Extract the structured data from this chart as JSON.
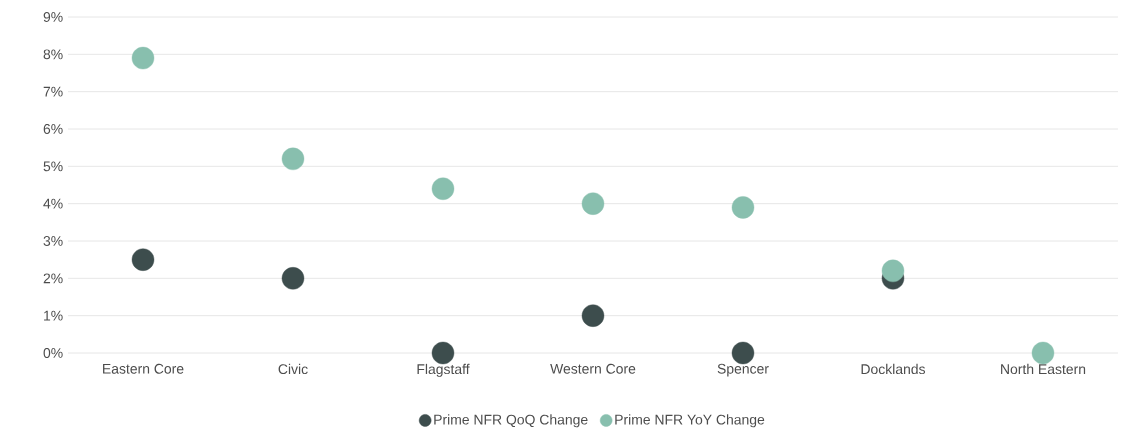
{
  "chart_data": {
    "type": "scatter",
    "categories": [
      "Eastern Core",
      "Civic",
      "Flagstaff",
      "Western Core",
      "Spencer",
      "Docklands",
      "North Eastern"
    ],
    "series": [
      {
        "name": "Prime NFR QoQ Change",
        "color": "#3d4d4d",
        "values": [
          2.5,
          2.0,
          0,
          1.0,
          0,
          2.0,
          null
        ]
      },
      {
        "name": "Prime NFR YoY Change",
        "color": "#88bfae",
        "values": [
          7.9,
          5.2,
          4.4,
          4.0,
          3.9,
          2.2,
          0
        ]
      }
    ],
    "ylim": [
      0,
      9
    ],
    "yticks": [
      {
        "value": 0,
        "label": "0%"
      },
      {
        "value": 1,
        "label": "1%"
      },
      {
        "value": 2,
        "label": "2%"
      },
      {
        "value": 3,
        "label": "3%"
      },
      {
        "value": 4,
        "label": "4%"
      },
      {
        "value": 5,
        "label": "5%"
      },
      {
        "value": 6,
        "label": "6%"
      },
      {
        "value": 7,
        "label": "7%"
      },
      {
        "value": 8,
        "label": "8%"
      },
      {
        "value": 9,
        "label": "9%"
      }
    ],
    "grid": "y",
    "legend": "bottom"
  }
}
